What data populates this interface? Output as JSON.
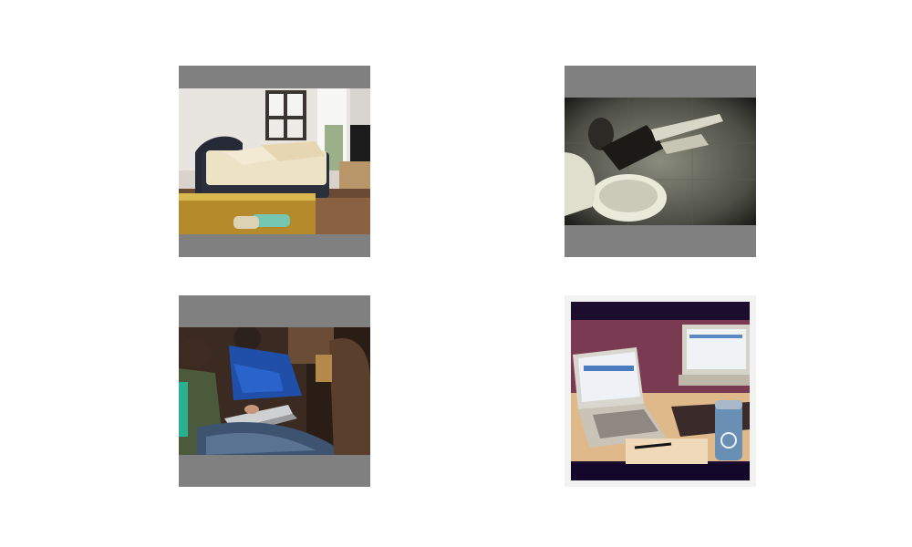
{
  "grid": {
    "letterbox_color": "#808080",
    "background_color": "#ffffff",
    "photos": [
      {
        "subject": "bedroom-with-bed-and-window"
      },
      {
        "subject": "person-lying-next-to-toilet"
      },
      {
        "subject": "people-using-laptops-seated"
      },
      {
        "subject": "laptops-on-desk-with-coffee-cup"
      }
    ]
  }
}
